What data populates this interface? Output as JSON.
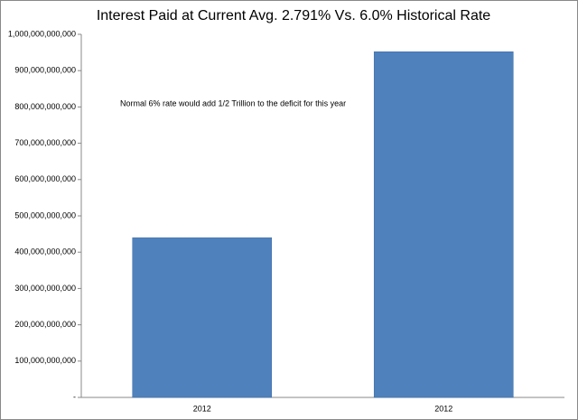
{
  "chart_data": {
    "type": "bar",
    "title": "Interest Paid at Current Avg. 2.791% Vs. 6.0% Historical Rate",
    "annotation": "Normal 6% rate would add 1/2 Trillion to the deficit for this year",
    "categories": [
      "2012",
      "2012"
    ],
    "values": [
      440000000000,
      952000000000
    ],
    "color": "#4f81bd",
    "ylim": [
      0,
      1000000000000
    ],
    "yticks": [
      {
        "value": 0,
        "label": "-"
      },
      {
        "value": 100000000000,
        "label": "100,000,000,000"
      },
      {
        "value": 200000000000,
        "label": "200,000,000,000"
      },
      {
        "value": 300000000000,
        "label": "300,000,000,000"
      },
      {
        "value": 400000000000,
        "label": "400,000,000,000"
      },
      {
        "value": 500000000000,
        "label": "500,000,000,000"
      },
      {
        "value": 600000000000,
        "label": "600,000,000,000"
      },
      {
        "value": 700000000000,
        "label": "700,000,000,000"
      },
      {
        "value": 800000000000,
        "label": "800,000,000,000"
      },
      {
        "value": 900000000000,
        "label": "900,000,000,000"
      },
      {
        "value": 1000000000000,
        "label": "1,000,000,000,000"
      }
    ],
    "grid": false
  }
}
